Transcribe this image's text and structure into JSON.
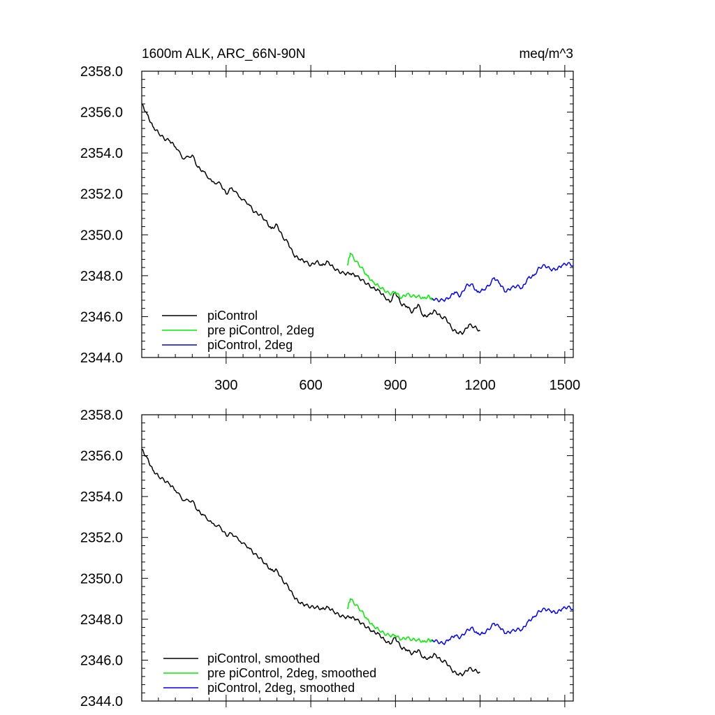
{
  "figure": {
    "title_left": "1600m ALK, ARC_66N-90N",
    "title_right": "meq/m^3"
  },
  "chart_data": [
    {
      "type": "line",
      "panel": "top",
      "xlim": [
        1,
        1530
      ],
      "ylim": [
        2344.0,
        2358.0
      ],
      "xticks": [
        300,
        600,
        900,
        1200,
        1500
      ],
      "xtick_labels": [
        "300",
        "600",
        "900",
        "1200",
        "1500"
      ],
      "yticks": [
        2344,
        2346,
        2348,
        2350,
        2352,
        2354,
        2356,
        2358
      ],
      "ytick_labels": [
        "2344.0",
        "2346.0",
        "2348.0",
        "2350.0",
        "2352.0",
        "2354.0",
        "2356.0",
        "2358.0"
      ],
      "legend_position": "bottom-left",
      "series": [
        {
          "name": "piControl",
          "color": "#000000",
          "x": [
            1,
            20,
            40,
            60,
            80,
            100,
            120,
            150,
            180,
            200,
            220,
            250,
            280,
            300,
            320,
            350,
            380,
            400,
            420,
            440,
            460,
            480,
            500,
            520,
            540,
            560,
            580,
            600,
            620,
            640,
            660,
            680,
            700,
            720,
            740,
            760,
            780,
            800,
            820,
            840,
            860,
            880,
            900,
            920,
            940,
            960,
            980,
            1000,
            1020,
            1040,
            1060,
            1080,
            1100,
            1120,
            1140,
            1160,
            1180,
            1200
          ],
          "y": [
            2356.4,
            2355.9,
            2355.3,
            2355.0,
            2354.7,
            2354.6,
            2354.3,
            2353.7,
            2353.9,
            2353.3,
            2353.1,
            2352.6,
            2352.5,
            2352.0,
            2352.3,
            2351.8,
            2351.5,
            2351.1,
            2351.0,
            2350.7,
            2350.3,
            2350.5,
            2349.9,
            2349.6,
            2349.0,
            2348.8,
            2348.7,
            2348.5,
            2348.7,
            2348.5,
            2348.7,
            2348.4,
            2348.2,
            2348.1,
            2348.1,
            2348.0,
            2347.8,
            2347.6,
            2347.4,
            2347.3,
            2347.0,
            2346.7,
            2347.2,
            2346.6,
            2346.5,
            2346.2,
            2346.6,
            2346.0,
            2346.1,
            2346.3,
            2346.0,
            2345.9,
            2345.4,
            2345.2,
            2345.2,
            2345.6,
            2345.5,
            2345.3
          ]
        },
        {
          "name": "pre piControl, 2deg",
          "color": "#00ee00",
          "x": [
            730,
            740,
            760,
            780,
            800,
            820,
            840,
            860,
            880,
            900,
            920,
            940,
            960,
            980,
            1000,
            1020,
            1030
          ],
          "y": [
            2348.5,
            2349.1,
            2348.7,
            2348.4,
            2348.0,
            2347.7,
            2347.5,
            2347.3,
            2347.1,
            2347.2,
            2346.9,
            2347.1,
            2347.0,
            2347.0,
            2346.9,
            2347.0,
            2346.8
          ]
        },
        {
          "name": "piControl, 2deg",
          "color": "#0000ee",
          "x": [
            1030,
            1050,
            1070,
            1090,
            1110,
            1130,
            1150,
            1170,
            1190,
            1210,
            1230,
            1250,
            1270,
            1290,
            1310,
            1330,
            1350,
            1370,
            1390,
            1410,
            1430,
            1450,
            1470,
            1490,
            1510,
            1530
          ],
          "y": [
            2346.9,
            2346.8,
            2346.8,
            2346.9,
            2347.2,
            2347.0,
            2347.5,
            2347.6,
            2347.2,
            2347.3,
            2347.5,
            2347.9,
            2347.6,
            2347.2,
            2347.4,
            2347.5,
            2347.4,
            2347.9,
            2348.0,
            2348.4,
            2348.5,
            2348.3,
            2348.3,
            2348.5,
            2348.6,
            2348.5
          ]
        }
      ]
    },
    {
      "type": "line",
      "panel": "bottom",
      "xlim": [
        1,
        1530
      ],
      "ylim": [
        2344.0,
        2358.0
      ],
      "xticks": [
        300,
        600,
        900,
        1200,
        1500
      ],
      "yticks": [
        2344,
        2346,
        2348,
        2350,
        2352,
        2354,
        2356,
        2358
      ],
      "ytick_labels": [
        "2344.0",
        "2346.0",
        "2348.0",
        "2350.0",
        "2352.0",
        "2354.0",
        "2356.0",
        "2358.0"
      ],
      "legend_position": "bottom-left",
      "series": [
        {
          "name": "piControl, smoothed",
          "color": "#000000",
          "x": [
            1,
            20,
            40,
            60,
            80,
            100,
            120,
            150,
            180,
            200,
            220,
            250,
            280,
            300,
            320,
            350,
            380,
            400,
            420,
            440,
            460,
            480,
            500,
            520,
            540,
            560,
            580,
            600,
            620,
            640,
            660,
            680,
            700,
            720,
            740,
            760,
            780,
            800,
            820,
            840,
            860,
            880,
            900,
            920,
            940,
            960,
            980,
            1000,
            1020,
            1040,
            1060,
            1080,
            1100,
            1120,
            1140,
            1160,
            1180,
            1200
          ],
          "y": [
            2356.3,
            2355.9,
            2355.3,
            2355.0,
            2354.8,
            2354.6,
            2354.3,
            2353.8,
            2353.8,
            2353.3,
            2353.1,
            2352.7,
            2352.5,
            2352.1,
            2352.2,
            2351.8,
            2351.5,
            2351.2,
            2351.0,
            2350.7,
            2350.4,
            2350.4,
            2349.9,
            2349.6,
            2349.1,
            2348.8,
            2348.7,
            2348.6,
            2348.6,
            2348.5,
            2348.6,
            2348.4,
            2348.2,
            2348.1,
            2348.1,
            2348.0,
            2347.8,
            2347.6,
            2347.4,
            2347.3,
            2347.0,
            2346.8,
            2347.1,
            2346.6,
            2346.5,
            2346.3,
            2346.5,
            2346.1,
            2346.1,
            2346.3,
            2346.0,
            2345.9,
            2345.5,
            2345.3,
            2345.3,
            2345.6,
            2345.5,
            2345.4
          ]
        },
        {
          "name": "pre piControl, 2deg, smoothed",
          "color": "#00ee00",
          "x": [
            730,
            740,
            760,
            780,
            800,
            820,
            840,
            860,
            880,
            900,
            920,
            940,
            960,
            980,
            1000,
            1020,
            1030
          ],
          "y": [
            2348.5,
            2349.0,
            2348.7,
            2348.4,
            2348.0,
            2347.7,
            2347.5,
            2347.3,
            2347.2,
            2347.2,
            2347.0,
            2347.1,
            2347.0,
            2347.0,
            2346.9,
            2347.0,
            2346.9
          ]
        },
        {
          "name": "piControl, 2deg, smoothed",
          "color": "#0000ee",
          "x": [
            1030,
            1050,
            1070,
            1090,
            1110,
            1130,
            1150,
            1170,
            1190,
            1210,
            1230,
            1250,
            1270,
            1290,
            1310,
            1330,
            1350,
            1370,
            1390,
            1410,
            1430,
            1450,
            1470,
            1490,
            1510,
            1530
          ],
          "y": [
            2347.0,
            2346.9,
            2346.8,
            2347.0,
            2347.2,
            2347.1,
            2347.4,
            2347.6,
            2347.3,
            2347.3,
            2347.5,
            2347.8,
            2347.6,
            2347.3,
            2347.4,
            2347.5,
            2347.5,
            2347.9,
            2348.1,
            2348.4,
            2348.5,
            2348.4,
            2348.3,
            2348.5,
            2348.6,
            2348.5
          ]
        }
      ]
    }
  ]
}
